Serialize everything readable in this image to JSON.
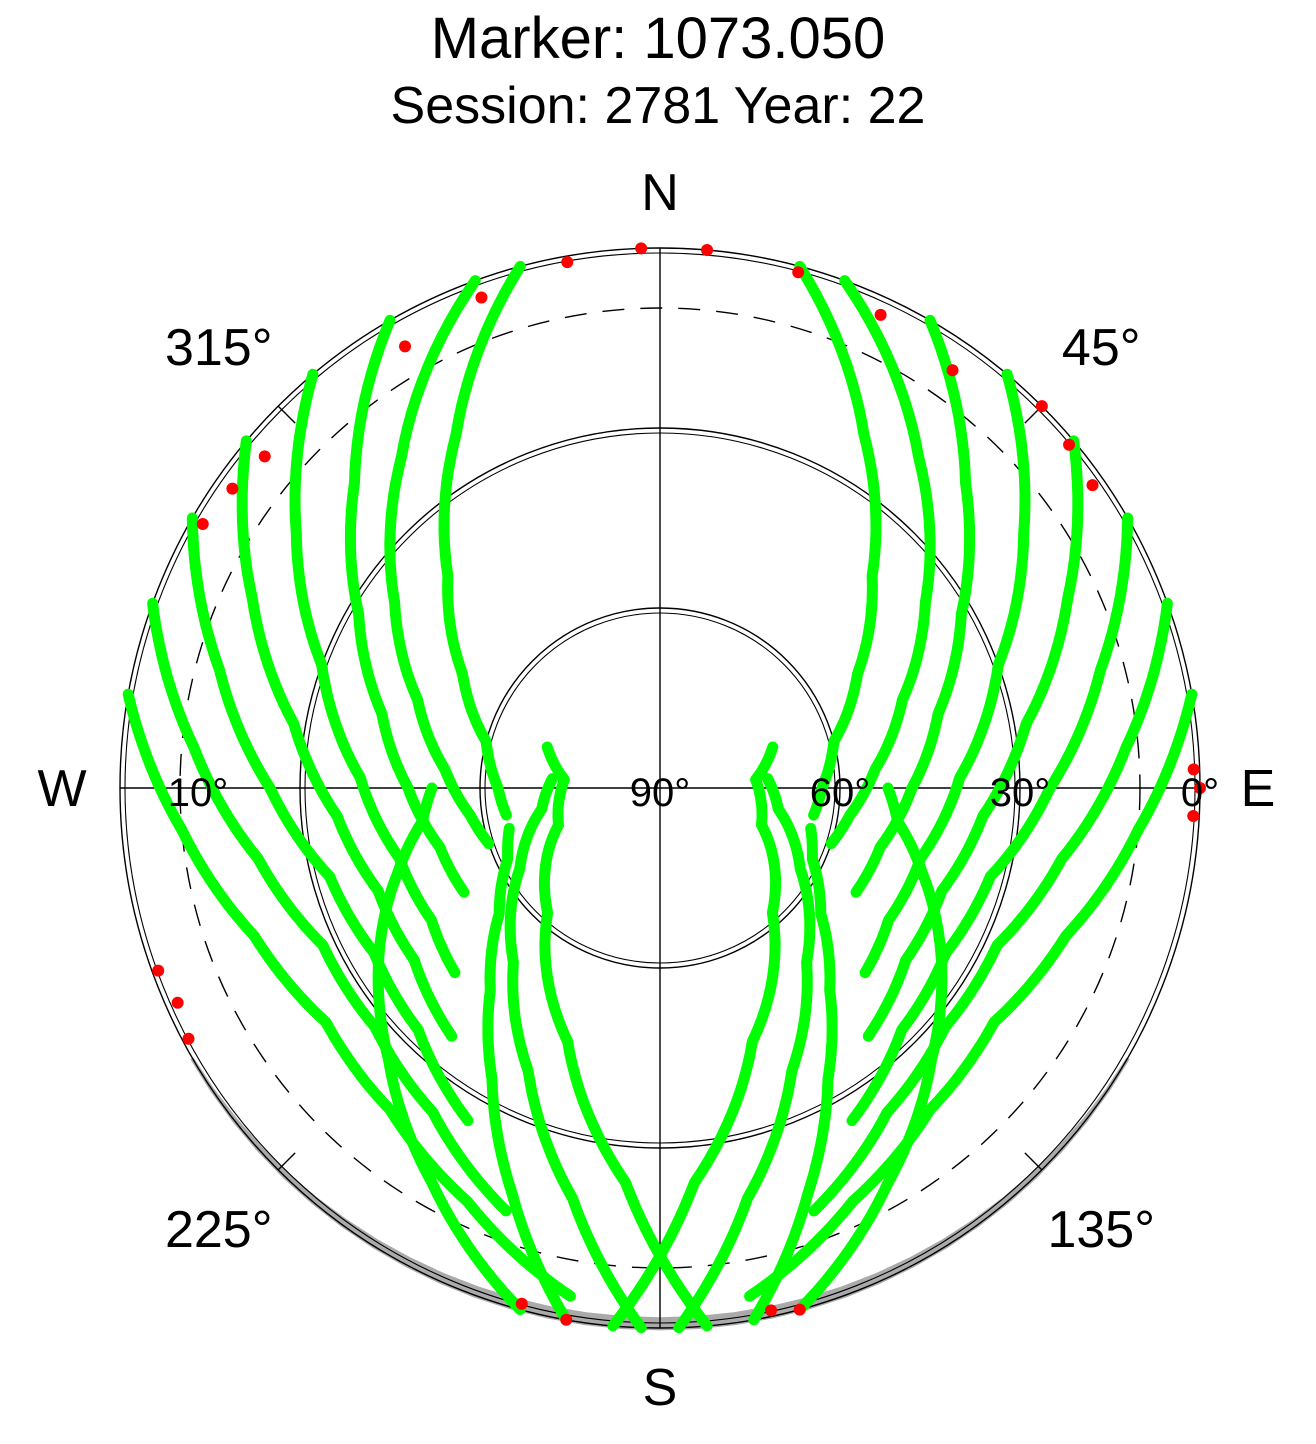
{
  "title": "Marker: 1073.050",
  "subtitle": "Session: 2781 Year: 22",
  "compass": {
    "north": "N",
    "south": "S",
    "east": "E",
    "west": "W"
  },
  "azimuth_labels": [
    {
      "text": "45°",
      "azimuth": 45
    },
    {
      "text": "135°",
      "azimuth": 135
    },
    {
      "text": "225°",
      "azimuth": 225
    },
    {
      "text": "315°",
      "azimuth": 315
    }
  ],
  "elevation_labels": [
    {
      "text": "90°",
      "elevation": 90
    },
    {
      "text": "60°",
      "elevation": 60
    },
    {
      "text": "30°",
      "elevation": 30
    },
    {
      "text": "0°",
      "elevation": 0
    },
    {
      "text": "10°",
      "elevation": 10
    }
  ],
  "colors": {
    "good": "#00ff00",
    "flagged": "#ff0000",
    "axis": "#000000",
    "mask": "#aaaaaa"
  },
  "chart_data": {
    "type": "scatter",
    "projection": "polar-skyplot",
    "title": "Marker: 1073.050",
    "subtitle": "Session: 2781 Year: 22",
    "azimuth_range": [
      0,
      360
    ],
    "elevation_range": [
      0,
      90
    ],
    "elevation_rings": [
      0,
      30,
      60,
      90
    ],
    "elevation_cutoff": 10,
    "grid": true,
    "series": [
      {
        "color": "#00ff00"
      },
      {
        "color": "#ff0000"
      }
    ],
    "tracks": [
      {
        "az": [
          15,
          30,
          45,
          60,
          75,
          90,
          100
        ],
        "el": [
          0,
          22,
          40,
          52,
          60,
          63,
          64
        ]
      },
      {
        "az": [
          20,
          38,
          55,
          70,
          85,
          98,
          108
        ],
        "el": [
          0,
          20,
          36,
          47,
          54,
          58,
          60
        ]
      },
      {
        "az": [
          30,
          45,
          60,
          75,
          90,
          105,
          118
        ],
        "el": [
          0,
          18,
          32,
          42,
          48,
          52,
          53
        ]
      },
      {
        "az": [
          40,
          55,
          70,
          88,
          105,
          120,
          132
        ],
        "el": [
          0,
          16,
          30,
          40,
          45,
          46,
          44
        ]
      },
      {
        "az": [
          50,
          65,
          80,
          95,
          110,
          125,
          140
        ],
        "el": [
          0,
          15,
          28,
          36,
          40,
          40,
          36
        ]
      },
      {
        "az": [
          60,
          75,
          90,
          105,
          120,
          135,
          150
        ],
        "el": [
          0,
          14,
          25,
          33,
          35,
          33,
          26
        ]
      },
      {
        "az": [
          70,
          85,
          100,
          115,
          130,
          145,
          160
        ],
        "el": [
          0,
          12,
          22,
          28,
          28,
          24,
          15
        ]
      },
      {
        "az": [
          80,
          95,
          110,
          125,
          140,
          155,
          170
        ],
        "el": [
          0,
          10,
          18,
          22,
          20,
          14,
          4
        ]
      },
      {
        "az": [
          345,
          330,
          315,
          300,
          285,
          270,
          260
        ],
        "el": [
          0,
          22,
          40,
          52,
          60,
          63,
          64
        ]
      },
      {
        "az": [
          340,
          322,
          305,
          290,
          275,
          262,
          252
        ],
        "el": [
          0,
          20,
          36,
          47,
          54,
          58,
          60
        ]
      },
      {
        "az": [
          330,
          315,
          300,
          285,
          270,
          255,
          242
        ],
        "el": [
          0,
          18,
          32,
          42,
          48,
          52,
          53
        ]
      },
      {
        "az": [
          320,
          305,
          290,
          272,
          255,
          240,
          228
        ],
        "el": [
          0,
          16,
          30,
          40,
          45,
          46,
          44
        ]
      },
      {
        "az": [
          310,
          295,
          280,
          265,
          250,
          235,
          220
        ],
        "el": [
          0,
          15,
          28,
          36,
          40,
          40,
          36
        ]
      },
      {
        "az": [
          300,
          285,
          270,
          255,
          240,
          225,
          210
        ],
        "el": [
          0,
          14,
          25,
          33,
          35,
          33,
          26
        ]
      },
      {
        "az": [
          290,
          275,
          260,
          245,
          230,
          215,
          200
        ],
        "el": [
          0,
          12,
          22,
          28,
          28,
          24,
          15
        ]
      },
      {
        "az": [
          280,
          265,
          250,
          235,
          220,
          205,
          190
        ],
        "el": [
          0,
          10,
          18,
          22,
          20,
          14,
          4
        ]
      },
      {
        "az": [
          170,
          160,
          150,
          140,
          128,
          115,
          105
        ],
        "el": [
          0,
          18,
          34,
          46,
          56,
          62,
          64
        ]
      },
      {
        "az": [
          190,
          200,
          210,
          220,
          232,
          245,
          255
        ],
        "el": [
          0,
          18,
          34,
          46,
          56,
          62,
          64
        ]
      },
      {
        "az": [
          165,
          150,
          135,
          120,
          108,
          98,
          90
        ],
        "el": [
          0,
          14,
          26,
          36,
          44,
          50,
          52
        ]
      },
      {
        "az": [
          195,
          210,
          225,
          240,
          252,
          262,
          270
        ],
        "el": [
          0,
          14,
          26,
          36,
          44,
          50,
          52
        ]
      },
      {
        "az": [
          178,
          168,
          155,
          140,
          120,
          100,
          85
        ],
        "el": [
          0,
          20,
          38,
          52,
          63,
          70,
          72
        ]
      },
      {
        "az": [
          182,
          192,
          205,
          220,
          240,
          260,
          275
        ],
        "el": [
          0,
          20,
          38,
          52,
          63,
          70,
          72
        ]
      },
      {
        "az": [
          175,
          185,
          200,
          222,
          250,
          275,
          290
        ],
        "el": [
          0,
          24,
          45,
          62,
          72,
          74,
          70
        ]
      },
      {
        "az": [
          185,
          175,
          160,
          138,
          110,
          85,
          70
        ],
        "el": [
          0,
          24,
          45,
          62,
          72,
          74,
          70
        ]
      }
    ],
    "flagged_segments": [
      {
        "az": [
          330,
          340,
          350,
          358
        ],
        "el": [
          5,
          3,
          1,
          0
        ]
      },
      {
        "az": [
          5,
          15,
          25,
          35
        ],
        "el": [
          0,
          1,
          3,
          5
        ]
      },
      {
        "az": [
          300,
          305,
          310
        ],
        "el": [
          2,
          3,
          4
        ]
      },
      {
        "az": [
          45,
          50,
          55
        ],
        "el": [
          0,
          1,
          2
        ]
      },
      {
        "az": [
          88,
          90,
          93
        ],
        "el": [
          1,
          0,
          1
        ]
      },
      {
        "az": [
          242,
          246,
          250
        ],
        "el": [
          1,
          2,
          1
        ]
      },
      {
        "az": [
          190,
          195
        ],
        "el": [
          0,
          1
        ]
      },
      {
        "az": [
          165,
          168
        ],
        "el": [
          0,
          1
        ]
      }
    ]
  }
}
